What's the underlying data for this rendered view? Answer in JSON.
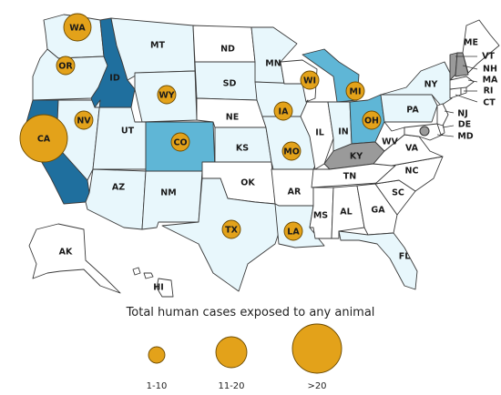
{
  "colors": {
    "none": "#ffffff",
    "low": "#e8f7fc",
    "mid": "#bde8f4",
    "high": "#5fb6d6",
    "top": "#1f6f9e",
    "gray": "#9a9a9a",
    "bubble": "#e3a21a"
  },
  "states": {
    "WA": "WA",
    "OR": "OR",
    "CA": "CA",
    "NV": "NV",
    "ID": "ID",
    "MT": "MT",
    "WY": "WY",
    "UT": "UT",
    "CO": "CO",
    "AZ": "AZ",
    "NM": "NM",
    "ND": "ND",
    "SD": "SD",
    "NE": "NE",
    "KS": "KS",
    "OK": "OK",
    "TX": "TX",
    "MN": "MN",
    "IA": "IA",
    "MO": "MO",
    "AR": "AR",
    "LA": "LA",
    "WI": "WI",
    "IL": "IL",
    "MS": "MS",
    "MI": "MI",
    "IN": "IN",
    "KY": "KY",
    "TN": "TN",
    "AL": "AL",
    "OH": "OH",
    "WV": "WV",
    "VA": "VA",
    "NC": "NC",
    "SC": "SC",
    "GA": "GA",
    "FL": "FL",
    "PA": "PA",
    "NY": "NY",
    "ME": "ME",
    "VT": "VT",
    "NH": "NH",
    "MA": "MA",
    "RI": "RI",
    "CT": "CT",
    "NJ": "NJ",
    "DE": "DE",
    "MD": "MD",
    "AK": "AK",
    "HI": "HI"
  },
  "legend": {
    "title": "Total human cases exposed to any animal",
    "small": "1-10",
    "medium": "11-20",
    "large": ">20"
  }
}
